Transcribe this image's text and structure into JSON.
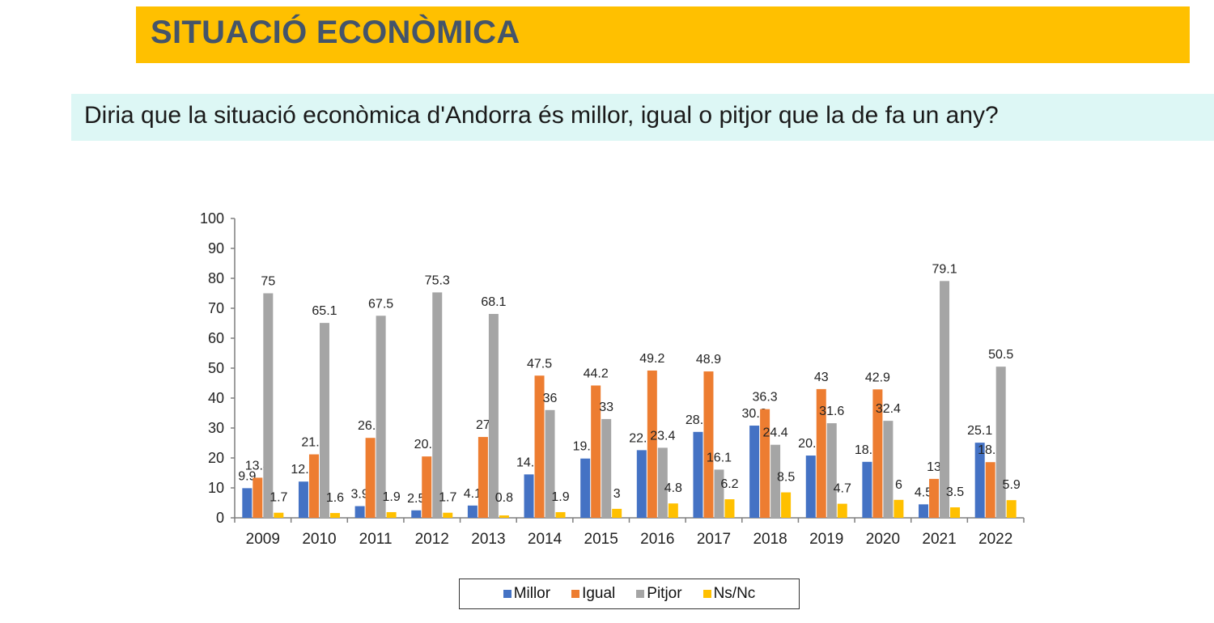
{
  "header": {
    "title": "SITUACIÓ ECONÒMICA",
    "question": "Diria que la situació econòmica d'Andorra és millor, igual o pitjor que la de fa un any?"
  },
  "colors": {
    "title_bg": "#FFC000",
    "title_text": "#44546A",
    "question_bg": "#DDF7F5"
  },
  "chart_data": {
    "type": "bar",
    "title": "",
    "xlabel": "",
    "ylabel": "",
    "ylim": [
      0,
      100
    ],
    "yticks": [
      0,
      10,
      20,
      30,
      40,
      50,
      60,
      70,
      80,
      90,
      100
    ],
    "grid": false,
    "legend_position": "bottom",
    "categories": [
      "2009",
      "2010",
      "2011",
      "2012",
      "2013",
      "2014",
      "2015",
      "2016",
      "2017",
      "2018",
      "2019",
      "2020",
      "2021",
      "2022"
    ],
    "series": [
      {
        "name": "Millor",
        "color": "#4472C4",
        "values": [
          9.9,
          12.1,
          3.9,
          2.5,
          4.1,
          14.5,
          19.8,
          22.6,
          28.7,
          30.8,
          20.8,
          18.7,
          4.5,
          25.1
        ]
      },
      {
        "name": "Igual",
        "color": "#ED7D31",
        "values": [
          13.4,
          21.2,
          26.7,
          20.5,
          27,
          47.5,
          44.2,
          49.2,
          48.9,
          36.3,
          43,
          42.9,
          13,
          18.6
        ]
      },
      {
        "name": "Pitjor",
        "color": "#A5A5A5",
        "values": [
          75,
          65.1,
          67.5,
          75.3,
          68.1,
          36,
          33,
          23.4,
          16.1,
          24.4,
          31.6,
          32.4,
          79.1,
          50.5
        ]
      },
      {
        "name": "Ns/Nc",
        "color": "#FFC000",
        "values": [
          1.7,
          1.6,
          1.9,
          1.7,
          0.8,
          1.9,
          3,
          4.8,
          6.2,
          8.5,
          4.7,
          6,
          3.5,
          5.9
        ]
      }
    ]
  }
}
